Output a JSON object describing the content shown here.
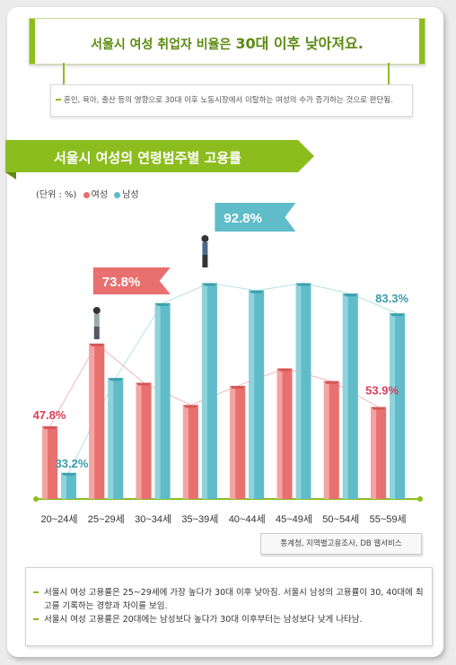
{
  "headline": {
    "prefix": "서울시 여성 취업자 비율은 ",
    "bold": "30대 이후 낮아져요."
  },
  "subnote": "혼인, 육아, 출산 등의 영향으로 30대 이후 노동시장에서 이탈하는 여성의 수가 증가하는 것으로 판단됨.",
  "section_title": "서울시 여성의 연령범주별 고용률",
  "unit": "(단위 : %)",
  "legend": {
    "female": "여성",
    "male": "남성"
  },
  "colors": {
    "female": "#e8706f",
    "male": "#5fbcc8",
    "accent": "#8cbd1f",
    "female_label": "#d9405a",
    "male_label": "#3a9aaa"
  },
  "chart_data": {
    "type": "bar",
    "title": "서울시 여성의 연령범주별 고용률",
    "categories": [
      "20~24세",
      "25~29세",
      "30~34세",
      "35~39세",
      "40~44세",
      "45~49세",
      "50~54세",
      "55~59세"
    ],
    "series": [
      {
        "name": "여성",
        "values": [
          47.8,
          73.8,
          61.5,
          54.5,
          60.5,
          66.0,
          62.0,
          53.9
        ]
      },
      {
        "name": "남성",
        "values": [
          33.2,
          63.0,
          86.5,
          92.8,
          90.5,
          92.8,
          89.5,
          83.3
        ]
      }
    ],
    "data_labels": {
      "female_first": "47.8%",
      "male_first": "33.2%",
      "female_peak": "73.8%",
      "male_peak": "92.8%",
      "male_last": "83.3%",
      "female_last": "53.9%"
    },
    "ylim": [
      25,
      100
    ]
  },
  "source": "통계청, 지역별고용조사, DB 웹서비스",
  "notes": [
    "서울시 여성 고용률은 25~29세에 가장 높다가 30대 이후 낮아짐. 서울시 남성의 고용률이 30, 40대에 최고를 기록하는 경향과 차이를 보임.",
    "서울시 여성 고용률은 20대에는 남성보다 높다가 30대 이후부터는 남성보다 낮게 나타남."
  ]
}
